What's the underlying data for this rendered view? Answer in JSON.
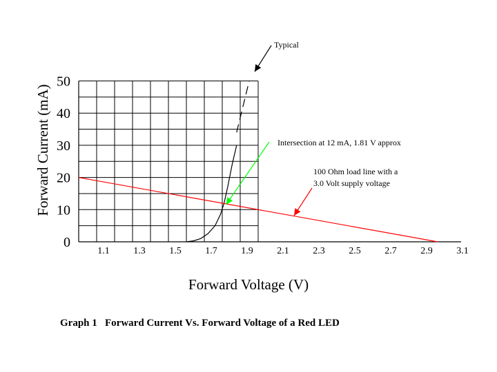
{
  "chart_data": {
    "type": "line",
    "xlabel": "Forward Voltage (V)",
    "ylabel": "Forward Current (mA)",
    "caption": "Graph 1   Forward Current Vs. Forward Voltage of a Red LED",
    "x_ticks": [
      "1.1",
      "1.3",
      "1.5",
      "1.7",
      "1.9",
      "2.1",
      "2.3",
      "2.5",
      "2.7",
      "2.9",
      "3.1"
    ],
    "y_ticks": [
      "0",
      "10",
      "20",
      "30",
      "40",
      "50"
    ],
    "xlim": [
      1.0,
      3.1
    ],
    "ylim": [
      0,
      50
    ],
    "grid": true,
    "grid_extent": {
      "x": [
        1.0,
        2.0
      ],
      "y": [
        0,
        50
      ]
    },
    "series": [
      {
        "name": "Typical",
        "color": "#000000",
        "style": "solid",
        "points": [
          [
            1.6,
            0
          ],
          [
            1.64,
            0.3
          ],
          [
            1.68,
            1
          ],
          [
            1.72,
            2.5
          ],
          [
            1.76,
            5
          ],
          [
            1.79,
            8.5
          ],
          [
            1.81,
            12
          ],
          [
            1.83,
            17
          ],
          [
            1.855,
            24
          ],
          [
            1.88,
            30
          ]
        ]
      },
      {
        "name": "Typical (extrapolated)",
        "color": "#000000",
        "style": "dashed",
        "points": [
          [
            1.88,
            34
          ],
          [
            1.95,
            50
          ]
        ]
      },
      {
        "name": "100 Ohm load line with a 3.0 Volt supply voltage",
        "color": "#ff0000",
        "style": "solid",
        "points": [
          [
            1.0,
            20
          ],
          [
            3.0,
            0
          ]
        ]
      }
    ],
    "annotations": {
      "typical": "Typical",
      "intersection": "Intersection at 12 mA, 1.81 V approx",
      "load_line_1": "100 Ohm load line with a",
      "load_line_2": "3.0 Volt supply voltage"
    },
    "annotation_colors": {
      "typical": "#000000",
      "intersection": "#00ff00",
      "load_line": "#ff0000"
    },
    "intersection_point": [
      1.81,
      12
    ]
  }
}
